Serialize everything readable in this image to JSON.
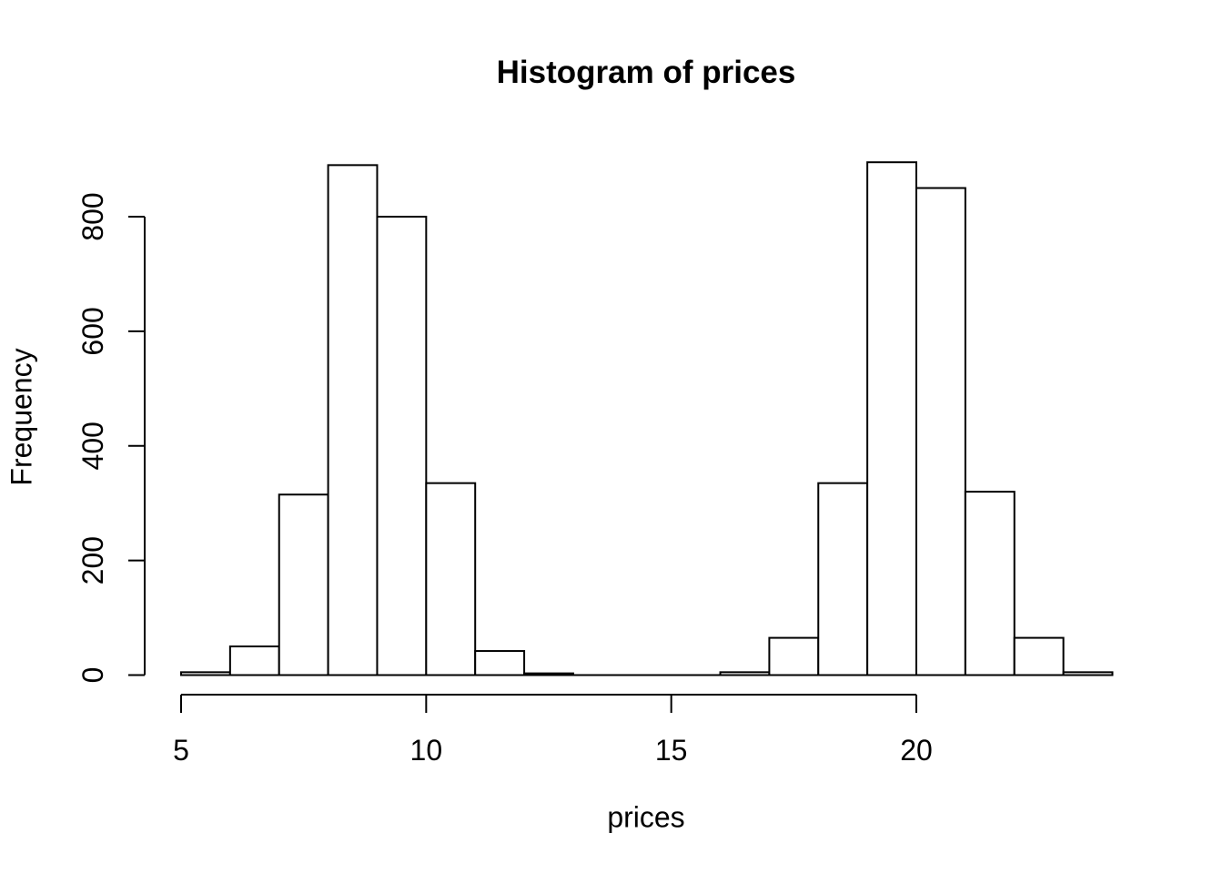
{
  "chart_data": {
    "type": "bar",
    "subtype": "histogram",
    "title": "Histogram of prices",
    "xlabel": "prices",
    "ylabel": "Frequency",
    "bin_width": 1,
    "bin_edges": [
      5,
      6,
      7,
      8,
      9,
      10,
      11,
      12,
      13,
      14,
      15,
      16,
      17,
      18,
      19,
      20,
      21,
      22,
      23,
      24
    ],
    "counts": [
      5,
      50,
      315,
      890,
      800,
      335,
      42,
      3,
      0,
      0,
      0,
      5,
      65,
      335,
      895,
      850,
      320,
      65,
      5
    ],
    "x_ticks": [
      5,
      10,
      15,
      20
    ],
    "y_ticks": [
      0,
      200,
      400,
      600,
      800
    ],
    "xlim": [
      5,
      24
    ],
    "ylim": [
      0,
      800
    ],
    "grid": false,
    "legend": "none",
    "bar_fill": "#ffffff",
    "bar_stroke": "#000000",
    "axis_color": "#000000",
    "text_color": "#000000",
    "background": "#ffffff"
  }
}
